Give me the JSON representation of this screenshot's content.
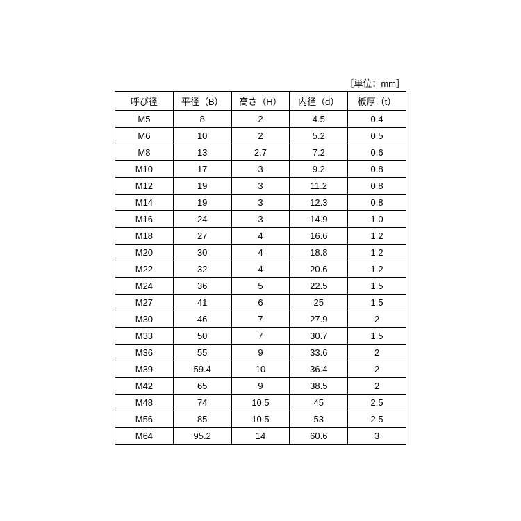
{
  "unit_label": "［単位：mm］",
  "table": {
    "columns": [
      "呼び径",
      "平径（B）",
      "高さ（H）",
      "内径（d）",
      "板厚（t）"
    ],
    "rows": [
      [
        "M5",
        "8",
        "2",
        "4.5",
        "0.4"
      ],
      [
        "M6",
        "10",
        "2",
        "5.2",
        "0.5"
      ],
      [
        "M8",
        "13",
        "2.7",
        "7.2",
        "0.6"
      ],
      [
        "M10",
        "17",
        "3",
        "9.2",
        "0.8"
      ],
      [
        "M12",
        "19",
        "3",
        "11.2",
        "0.8"
      ],
      [
        "M14",
        "19",
        "3",
        "12.3",
        "0.8"
      ],
      [
        "M16",
        "24",
        "3",
        "14.9",
        "1.0"
      ],
      [
        "M18",
        "27",
        "4",
        "16.6",
        "1.2"
      ],
      [
        "M20",
        "30",
        "4",
        "18.8",
        "1.2"
      ],
      [
        "M22",
        "32",
        "4",
        "20.6",
        "1.2"
      ],
      [
        "M24",
        "36",
        "5",
        "22.5",
        "1.5"
      ],
      [
        "M27",
        "41",
        "6",
        "25",
        "1.5"
      ],
      [
        "M30",
        "46",
        "7",
        "27.9",
        "2"
      ],
      [
        "M33",
        "50",
        "7",
        "30.7",
        "1.5"
      ],
      [
        "M36",
        "55",
        "9",
        "33.6",
        "2"
      ],
      [
        "M39",
        "59.4",
        "10",
        "36.4",
        "2"
      ],
      [
        "M42",
        "65",
        "9",
        "38.5",
        "2"
      ],
      [
        "M48",
        "74",
        "10.5",
        "45",
        "2.5"
      ],
      [
        "M56",
        "85",
        "10.5",
        "53",
        "2.5"
      ],
      [
        "M64",
        "95.2",
        "14",
        "60.6",
        "3"
      ]
    ],
    "col_widths": [
      "20%",
      "20%",
      "20%",
      "20%",
      "20%"
    ],
    "border_color": "#000000",
    "background_color": "#ffffff",
    "font_size": 13
  }
}
